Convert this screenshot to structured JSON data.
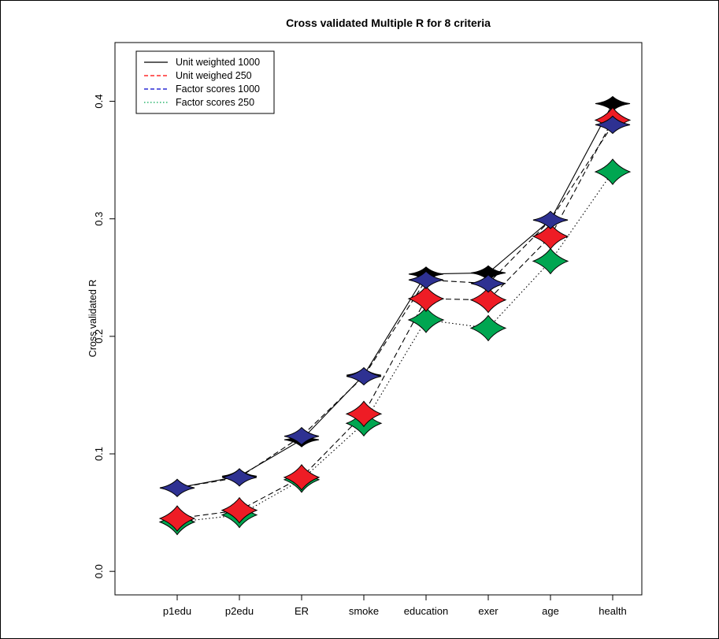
{
  "chart_data": {
    "type": "line",
    "title": "Cross validated Multiple R for 8 criteria",
    "xlabel": "",
    "ylabel": "Cross validated R",
    "categories": [
      "p1edu",
      "p2edu",
      "ER",
      "smoke",
      "education",
      "exer",
      "age",
      "health"
    ],
    "ylim": [
      -0.02,
      0.45
    ],
    "yticks": [
      0.0,
      0.1,
      0.2,
      0.3,
      0.4
    ],
    "ytick_labels": [
      "0.0",
      "0.1",
      "0.2",
      "0.3",
      "0.4"
    ],
    "grid": false,
    "legend_position": "top-left",
    "series": [
      {
        "name": "Unit weighted 1000",
        "color": "#000000",
        "line": "solid",
        "fill": "#000000",
        "values": [
          0.071,
          0.081,
          0.112,
          0.167,
          0.253,
          0.254,
          0.299,
          0.398
        ]
      },
      {
        "name": "Unit weighed 250",
        "color": "#000000",
        "legend_color": "#ff0000",
        "line": "dashed",
        "fill": "#ee1c25",
        "values": [
          0.045,
          0.052,
          0.08,
          0.134,
          0.232,
          0.231,
          0.285,
          0.384
        ]
      },
      {
        "name": "Factor scores 1000",
        "color": "#000000",
        "legend_color": "#0000cc",
        "line": "dashed",
        "fill": "#2e3192",
        "values": [
          0.071,
          0.08,
          0.115,
          0.166,
          0.248,
          0.245,
          0.299,
          0.38
        ]
      },
      {
        "name": "Factor scores 250",
        "color": "#000000",
        "legend_color": "#00a651",
        "line": "dotted",
        "fill": "#00a651",
        "values": [
          0.042,
          0.048,
          0.078,
          0.126,
          0.214,
          0.207,
          0.264,
          0.34
        ]
      }
    ]
  }
}
